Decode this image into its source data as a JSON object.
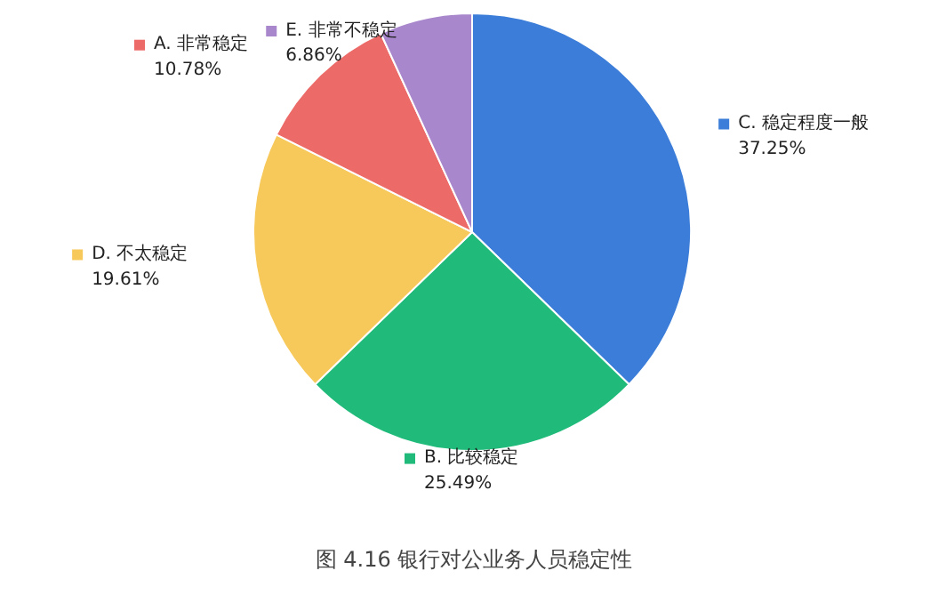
{
  "chart_data": {
    "type": "pie",
    "title": "图 4.16 银行对公业务人员稳定性",
    "categories": [
      "C. 稳定程度一般",
      "B. 比较稳定",
      "D. 不太稳定",
      "A. 非常稳定",
      "E. 非常不稳定"
    ],
    "values": [
      37.25,
      25.49,
      19.61,
      10.78,
      6.86
    ],
    "colors": [
      "#3b7dd8",
      "#20bb7a",
      "#f7c85a",
      "#ec6a67",
      "#a987cc"
    ],
    "legend": "right",
    "value_labels": [
      "37.25%",
      "25.49%",
      "19.61%",
      "10.78%",
      "6.86%"
    ]
  }
}
